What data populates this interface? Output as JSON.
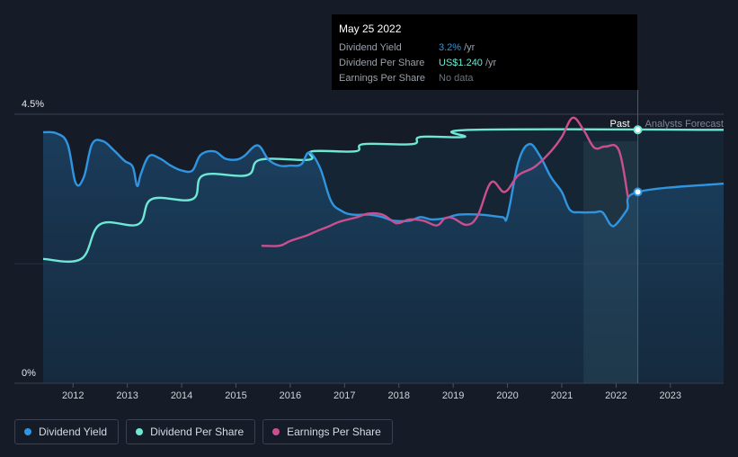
{
  "chart_data": {
    "type": "line",
    "y_axis_labels": {
      "top": "4.5%",
      "bottom": "0%"
    },
    "ylim": [
      0,
      4.5
    ],
    "x_ticks": [
      "2012",
      "2013",
      "2014",
      "2015",
      "2016",
      "2017",
      "2018",
      "2019",
      "2020",
      "2021",
      "2022",
      "2023"
    ],
    "regions": {
      "past": "Past",
      "forecast": "Analysts Forecast"
    },
    "series": [
      {
        "name": "Dividend Yield",
        "color": "#2f95e0",
        "points": [
          [
            2011.45,
            4.2
          ],
          [
            2011.7,
            4.18
          ],
          [
            2011.9,
            4.0
          ],
          [
            2012.05,
            3.35
          ],
          [
            2012.2,
            3.45
          ],
          [
            2012.35,
            4.0
          ],
          [
            2012.55,
            4.05
          ],
          [
            2012.75,
            3.9
          ],
          [
            2012.95,
            3.72
          ],
          [
            2013.1,
            3.62
          ],
          [
            2013.18,
            3.3
          ],
          [
            2013.25,
            3.5
          ],
          [
            2013.4,
            3.8
          ],
          [
            2013.6,
            3.76
          ],
          [
            2013.8,
            3.64
          ],
          [
            2014.0,
            3.56
          ],
          [
            2014.2,
            3.56
          ],
          [
            2014.35,
            3.82
          ],
          [
            2014.6,
            3.88
          ],
          [
            2014.8,
            3.76
          ],
          [
            2015.0,
            3.74
          ],
          [
            2015.15,
            3.8
          ],
          [
            2015.4,
            3.98
          ],
          [
            2015.6,
            3.74
          ],
          [
            2015.8,
            3.64
          ],
          [
            2016.0,
            3.64
          ],
          [
            2016.2,
            3.66
          ],
          [
            2016.35,
            3.86
          ],
          [
            2016.55,
            3.6
          ],
          [
            2016.75,
            3.05
          ],
          [
            2016.95,
            2.88
          ],
          [
            2017.15,
            2.82
          ],
          [
            2017.45,
            2.82
          ],
          [
            2017.7,
            2.78
          ],
          [
            2017.9,
            2.72
          ],
          [
            2018.2,
            2.72
          ],
          [
            2018.4,
            2.78
          ],
          [
            2018.6,
            2.74
          ],
          [
            2018.85,
            2.76
          ],
          [
            2019.1,
            2.82
          ],
          [
            2019.5,
            2.82
          ],
          [
            2019.9,
            2.78
          ],
          [
            2020.0,
            2.8
          ],
          [
            2020.2,
            3.7
          ],
          [
            2020.4,
            4.0
          ],
          [
            2020.6,
            3.8
          ],
          [
            2020.8,
            3.45
          ],
          [
            2021.0,
            3.2
          ],
          [
            2021.15,
            2.9
          ],
          [
            2021.35,
            2.86
          ],
          [
            2021.6,
            2.86
          ],
          [
            2021.75,
            2.86
          ],
          [
            2021.9,
            2.65
          ],
          [
            2022.0,
            2.66
          ],
          [
            2022.2,
            2.9
          ],
          [
            2022.4,
            3.2
          ],
          [
            2023.98,
            3.34
          ]
        ]
      },
      {
        "name": "Dividend Per Share",
        "color": "#6ee8d4",
        "points": [
          [
            2011.45,
            2.08
          ],
          [
            2012.15,
            2.08
          ],
          [
            2012.5,
            2.66
          ],
          [
            2013.2,
            2.66
          ],
          [
            2013.45,
            3.08
          ],
          [
            2014.2,
            3.08
          ],
          [
            2014.4,
            3.48
          ],
          [
            2015.2,
            3.48
          ],
          [
            2015.45,
            3.74
          ],
          [
            2016.35,
            3.74
          ],
          [
            2016.4,
            3.88
          ],
          [
            2017.2,
            3.88
          ],
          [
            2017.35,
            4.0
          ],
          [
            2018.25,
            4.0
          ],
          [
            2018.4,
            4.12
          ],
          [
            2019.2,
            4.12
          ],
          [
            2019.35,
            4.24
          ],
          [
            2023.98,
            4.24
          ]
        ]
      },
      {
        "name": "Earnings Per Share",
        "color": "#cb4f8e",
        "points": [
          [
            2015.47,
            2.3
          ],
          [
            2015.8,
            2.3
          ],
          [
            2016.0,
            2.38
          ],
          [
            2016.3,
            2.47
          ],
          [
            2016.5,
            2.55
          ],
          [
            2016.7,
            2.62
          ],
          [
            2016.9,
            2.7
          ],
          [
            2017.2,
            2.77
          ],
          [
            2017.45,
            2.84
          ],
          [
            2017.7,
            2.82
          ],
          [
            2017.9,
            2.7
          ],
          [
            2018.0,
            2.68
          ],
          [
            2018.2,
            2.74
          ],
          [
            2018.45,
            2.72
          ],
          [
            2018.7,
            2.64
          ],
          [
            2018.85,
            2.76
          ],
          [
            2019.0,
            2.76
          ],
          [
            2019.25,
            2.65
          ],
          [
            2019.45,
            2.8
          ],
          [
            2019.7,
            3.36
          ],
          [
            2019.95,
            3.2
          ],
          [
            2020.2,
            3.48
          ],
          [
            2020.5,
            3.62
          ],
          [
            2020.8,
            3.88
          ],
          [
            2021.0,
            4.12
          ],
          [
            2021.2,
            4.44
          ],
          [
            2021.4,
            4.24
          ],
          [
            2021.6,
            3.94
          ],
          [
            2021.8,
            3.96
          ],
          [
            2022.05,
            3.9
          ],
          [
            2022.22,
            3.1
          ]
        ]
      }
    ],
    "forecast_start": 2022.4,
    "shaded_start": 2021.4
  },
  "tooltip": {
    "date": "May 25 2022",
    "rows": [
      {
        "name": "Dividend Yield",
        "value": "3.2%",
        "unit": "/yr",
        "color": "#2f95e0"
      },
      {
        "name": "Dividend Per Share",
        "value": "US$1.240",
        "unit": "/yr",
        "color": "#6ee8d4"
      },
      {
        "name": "Earnings Per Share",
        "value": "No data",
        "unit": "",
        "color": "#6b727c"
      }
    ]
  },
  "legend": [
    {
      "label": "Dividend Yield",
      "color": "#2f95e0"
    },
    {
      "label": "Dividend Per Share",
      "color": "#6ee8d4"
    },
    {
      "label": "Earnings Per Share",
      "color": "#cb4f8e"
    }
  ]
}
